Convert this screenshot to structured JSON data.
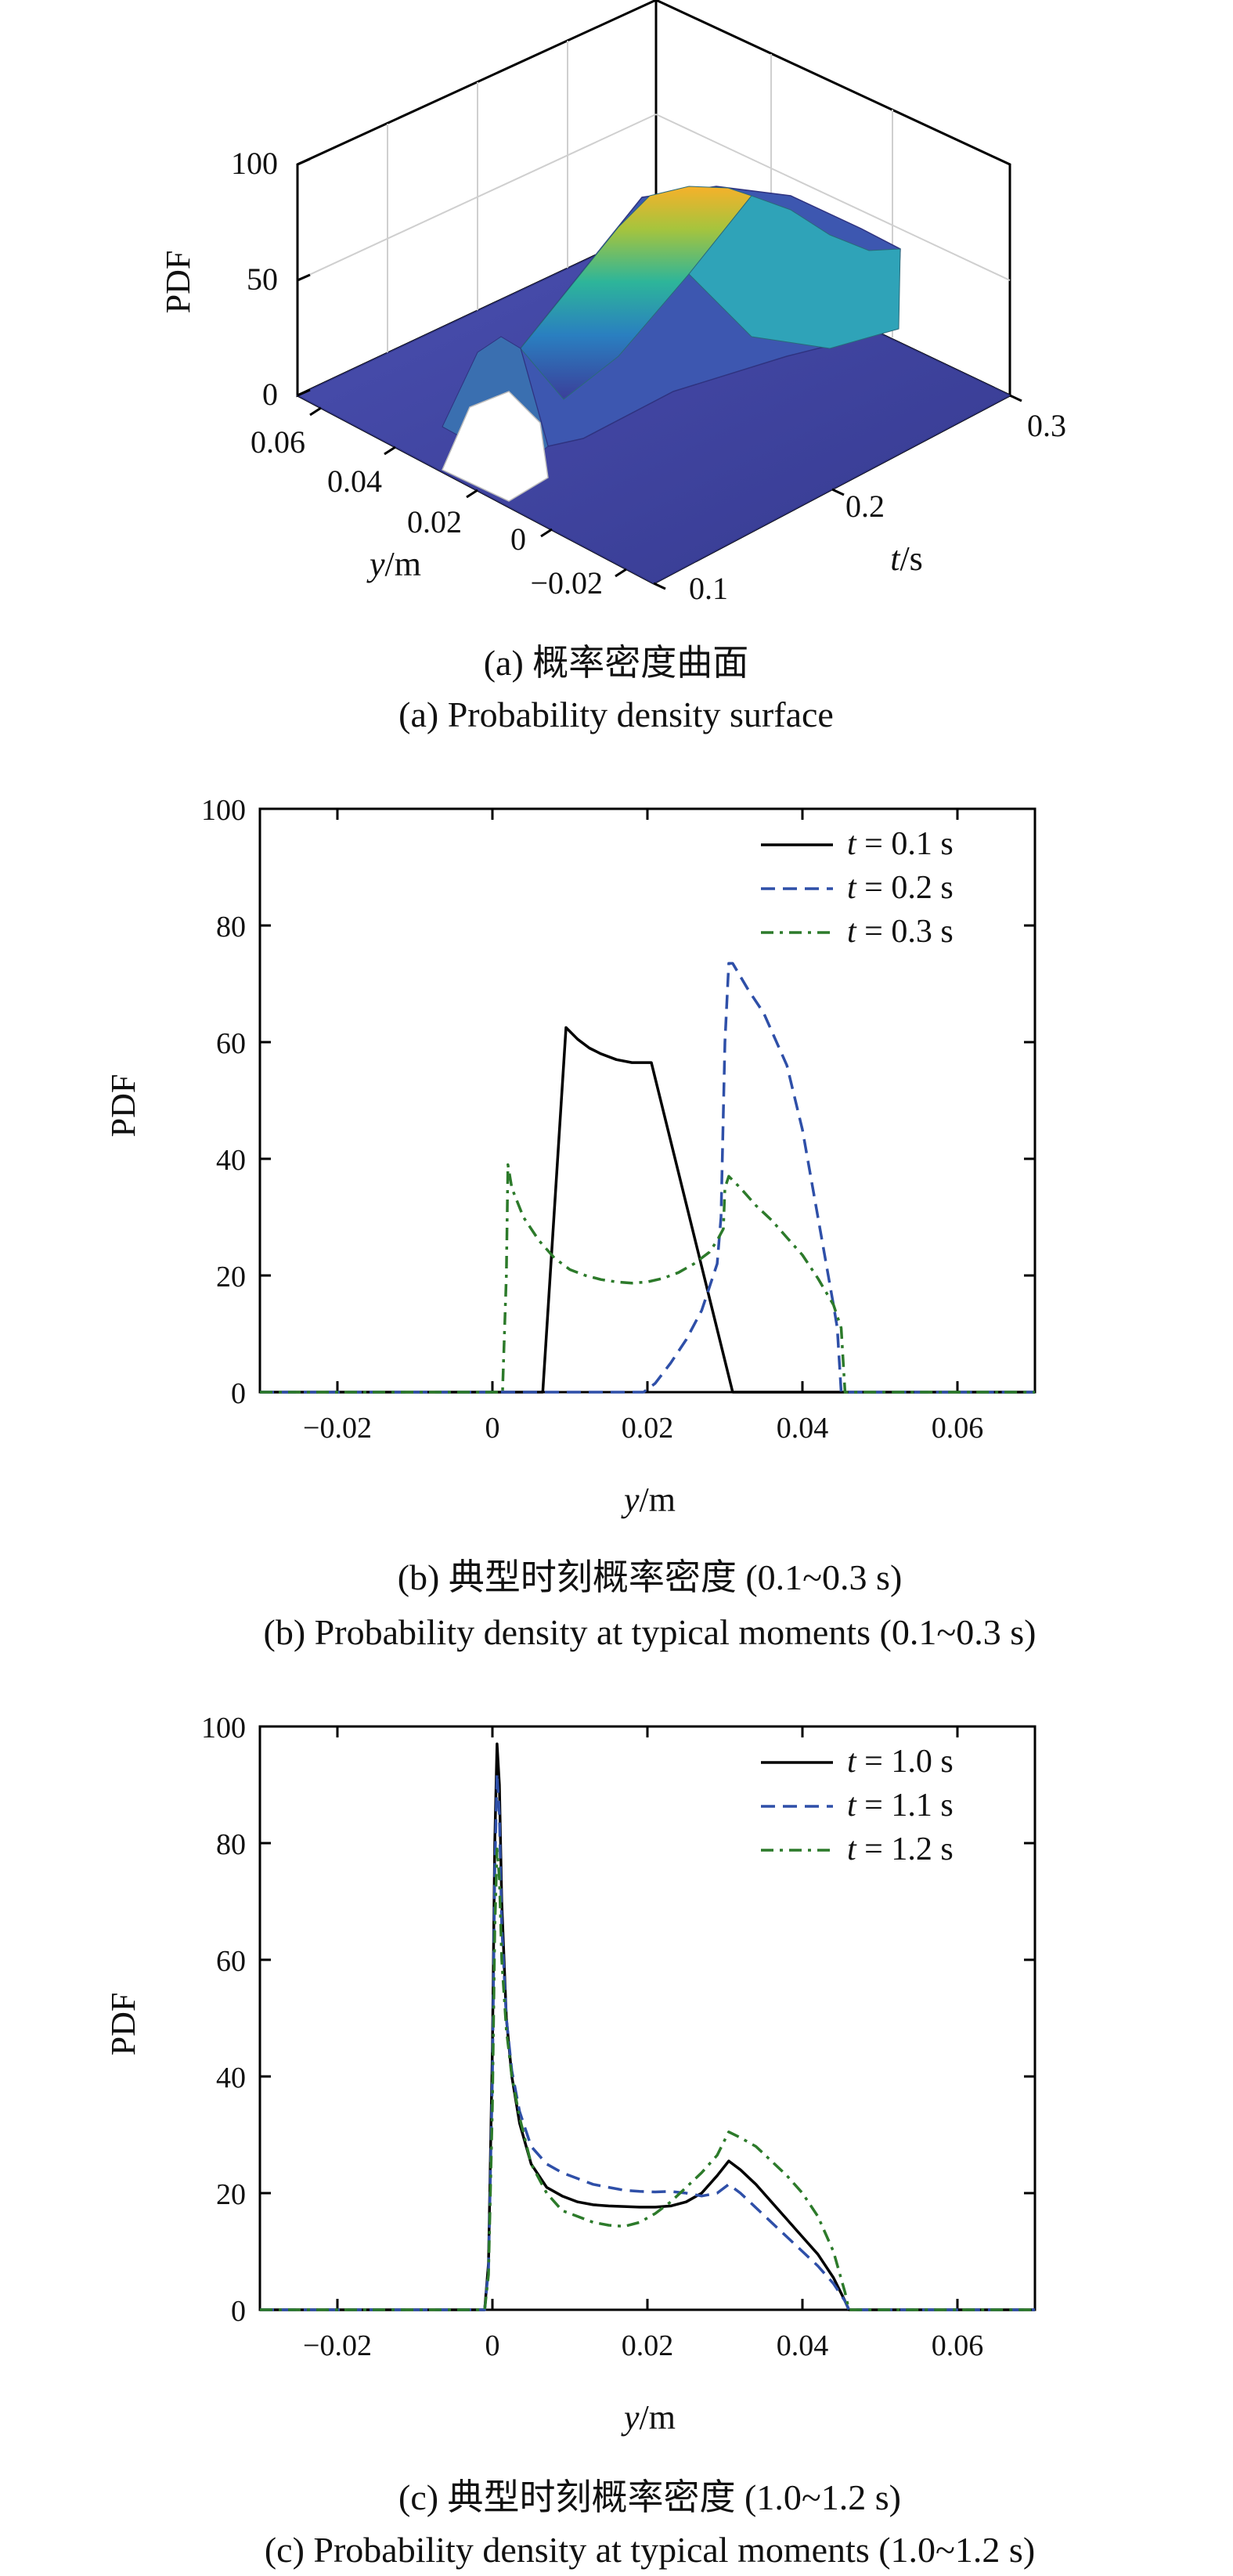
{
  "colors": {
    "series_1": "#000000",
    "series_2": "#2e4fa8",
    "series_3": "#2c7a2a",
    "surface_low": "#3b3f9a",
    "surface_high": "#f6b12a"
  },
  "panel_a": {
    "caption_cn": "(a) 概率密度曲面",
    "caption_en": "(a) Probability density surface",
    "z_label": "PDF",
    "y_label_var": "y",
    "y_label_unit": "/m",
    "t_label_var": "t",
    "t_label_unit": "/s",
    "z_ticks": [
      "100",
      "50",
      "0"
    ],
    "y_ticks": [
      "0.06",
      "0.04",
      "0.02",
      "0",
      "−0.02"
    ],
    "t_ticks": [
      "0.1",
      "0.2",
      "0.3"
    ]
  },
  "panel_b": {
    "caption_cn": "(b) 典型时刻概率密度 (0.1~0.3 s)",
    "caption_en": "(b) Probability density at typical moments (0.1~0.3 s)",
    "xlabel_var": "y",
    "xlabel_unit": "/m",
    "ylabel": "PDF"
  },
  "panel_c": {
    "caption_cn": "(c) 典型时刻概率密度 (1.0~1.2 s)",
    "caption_en": "(c) Probability density at typical moments (1.0~1.2 s)",
    "xlabel_var": "y",
    "xlabel_unit": "/m",
    "ylabel": "PDF"
  },
  "chart_data": [
    {
      "type": "surface",
      "zlim": [
        0,
        100
      ],
      "ylim": [
        -0.02,
        0.06
      ],
      "tlim": [
        0.1,
        0.3
      ],
      "colormap": "parula"
    },
    {
      "type": "line",
      "xlim": [
        -0.03,
        0.07
      ],
      "ylim": [
        0,
        100
      ],
      "xticks": [
        -0.02,
        0,
        0.02,
        0.04,
        0.06
      ],
      "xtick_labels": [
        "−0.02",
        "0",
        "0.02",
        "0.04",
        "0.06"
      ],
      "yticks": [
        0,
        20,
        40,
        60,
        80,
        100
      ],
      "ytick_labels": [
        "0",
        "20",
        "40",
        "60",
        "80",
        "100"
      ],
      "legend_position": "top-right",
      "series": [
        {
          "name_var": "t",
          "name_rest": " = 0.1 s",
          "style": "solid",
          "color": "#000000",
          "points": [
            [
              -0.03,
              0
            ],
            [
              0.0065,
              0
            ],
            [
              0.0095,
              62.5
            ],
            [
              0.011,
              60.5
            ],
            [
              0.0125,
              59
            ],
            [
              0.014,
              58
            ],
            [
              0.016,
              57
            ],
            [
              0.018,
              56.5
            ],
            [
              0.0195,
              56.5
            ],
            [
              0.0205,
              56.5
            ],
            [
              0.031,
              0
            ],
            [
              0.07,
              0
            ]
          ]
        },
        {
          "name_var": "t",
          "name_rest": " = 0.2 s",
          "style": "dashed",
          "color": "#2e4fa8",
          "points": [
            [
              -0.03,
              0
            ],
            [
              0.0195,
              0
            ],
            [
              0.021,
              1.5
            ],
            [
              0.023,
              5
            ],
            [
              0.025,
              9
            ],
            [
              0.027,
              14
            ],
            [
              0.029,
              22
            ],
            [
              0.0295,
              30
            ],
            [
              0.03,
              60
            ],
            [
              0.0305,
              73.5
            ],
            [
              0.031,
              73.5
            ],
            [
              0.033,
              69
            ],
            [
              0.035,
              65
            ],
            [
              0.038,
              56
            ],
            [
              0.04,
              45
            ],
            [
              0.042,
              30
            ],
            [
              0.044,
              15
            ],
            [
              0.0445,
              11
            ],
            [
              0.045,
              0
            ],
            [
              0.07,
              0
            ]
          ]
        },
        {
          "name_var": "t",
          "name_rest": " = 0.3 s",
          "style": "dashdot",
          "color": "#2c7a2a",
          "points": [
            [
              -0.03,
              0
            ],
            [
              0.0013,
              0
            ],
            [
              0.0018,
              20
            ],
            [
              0.002,
              39
            ],
            [
              0.0025,
              35
            ],
            [
              0.004,
              30
            ],
            [
              0.006,
              26
            ],
            [
              0.008,
              23
            ],
            [
              0.01,
              21
            ],
            [
              0.012,
              20
            ],
            [
              0.014,
              19.3
            ],
            [
              0.016,
              18.9
            ],
            [
              0.018,
              18.7
            ],
            [
              0.02,
              18.9
            ],
            [
              0.022,
              19.5
            ],
            [
              0.024,
              20.5
            ],
            [
              0.026,
              22
            ],
            [
              0.028,
              24
            ],
            [
              0.029,
              26
            ],
            [
              0.0298,
              28
            ],
            [
              0.03,
              35
            ],
            [
              0.0305,
              37
            ],
            [
              0.032,
              35
            ],
            [
              0.034,
              32
            ],
            [
              0.036,
              29.5
            ],
            [
              0.038,
              26.5
            ],
            [
              0.04,
              23.5
            ],
            [
              0.042,
              19.5
            ],
            [
              0.044,
              15
            ],
            [
              0.045,
              11
            ],
            [
              0.0455,
              0
            ],
            [
              0.07,
              0
            ]
          ]
        }
      ]
    },
    {
      "type": "line",
      "xlim": [
        -0.03,
        0.07
      ],
      "ylim": [
        0,
        100
      ],
      "xticks": [
        -0.02,
        0,
        0.02,
        0.04,
        0.06
      ],
      "xtick_labels": [
        "−0.02",
        "0",
        "0.02",
        "0.04",
        "0.06"
      ],
      "yticks": [
        0,
        20,
        40,
        60,
        80,
        100
      ],
      "ytick_labels": [
        "0",
        "20",
        "40",
        "60",
        "80",
        "100"
      ],
      "legend_position": "top-right",
      "series": [
        {
          "name_var": "t",
          "name_rest": " = 1.0 s",
          "style": "solid",
          "color": "#000000",
          "points": [
            [
              -0.03,
              0
            ],
            [
              -0.001,
              0
            ],
            [
              -0.0005,
              8
            ],
            [
              0,
              45
            ],
            [
              0.0003,
              80
            ],
            [
              0.0006,
              97
            ],
            [
              0.0009,
              90
            ],
            [
              0.0012,
              70
            ],
            [
              0.0018,
              50
            ],
            [
              0.0025,
              40
            ],
            [
              0.0035,
              32
            ],
            [
              0.005,
              25
            ],
            [
              0.007,
              21
            ],
            [
              0.009,
              19.5
            ],
            [
              0.011,
              18.5
            ],
            [
              0.013,
              18
            ],
            [
              0.015,
              17.8
            ],
            [
              0.017,
              17.7
            ],
            [
              0.019,
              17.6
            ],
            [
              0.021,
              17.6
            ],
            [
              0.023,
              17.8
            ],
            [
              0.025,
              18.5
            ],
            [
              0.027,
              20
            ],
            [
              0.029,
              23
            ],
            [
              0.0305,
              25.5
            ],
            [
              0.032,
              24
            ],
            [
              0.034,
              21.5
            ],
            [
              0.036,
              18.5
            ],
            [
              0.038,
              15.5
            ],
            [
              0.04,
              12.5
            ],
            [
              0.042,
              9.5
            ],
            [
              0.044,
              5.5
            ],
            [
              0.0455,
              1.5
            ],
            [
              0.046,
              0
            ],
            [
              0.07,
              0
            ]
          ]
        },
        {
          "name_var": "t",
          "name_rest": " = 1.1 s",
          "style": "dashed",
          "color": "#2e4fa8",
          "points": [
            [
              -0.03,
              0
            ],
            [
              -0.001,
              0
            ],
            [
              -0.0005,
              7
            ],
            [
              0,
              40
            ],
            [
              0.0003,
              75
            ],
            [
              0.0006,
              92
            ],
            [
              0.0009,
              85
            ],
            [
              0.0012,
              66
            ],
            [
              0.0018,
              50
            ],
            [
              0.0025,
              41
            ],
            [
              0.0035,
              34
            ],
            [
              0.005,
              28
            ],
            [
              0.007,
              25
            ],
            [
              0.009,
              23.5
            ],
            [
              0.011,
              22.5
            ],
            [
              0.013,
              21.5
            ],
            [
              0.015,
              21
            ],
            [
              0.017,
              20.5
            ],
            [
              0.019,
              20.3
            ],
            [
              0.021,
              20.2
            ],
            [
              0.023,
              20.3
            ],
            [
              0.025,
              20
            ],
            [
              0.027,
              19.5
            ],
            [
              0.029,
              20
            ],
            [
              0.0305,
              21.5
            ],
            [
              0.032,
              20
            ],
            [
              0.034,
              17.5
            ],
            [
              0.036,
              15
            ],
            [
              0.038,
              12.5
            ],
            [
              0.04,
              10
            ],
            [
              0.042,
              7.5
            ],
            [
              0.044,
              4.5
            ],
            [
              0.0455,
              1.5
            ],
            [
              0.046,
              0
            ],
            [
              0.07,
              0
            ]
          ]
        },
        {
          "name_var": "t",
          "name_rest": " = 1.2 s",
          "style": "dashdot",
          "color": "#2c7a2a",
          "points": [
            [
              -0.03,
              0
            ],
            [
              -0.001,
              0
            ],
            [
              -0.0005,
              6
            ],
            [
              0,
              35
            ],
            [
              0.0003,
              65
            ],
            [
              0.0006,
              79
            ],
            [
              0.0009,
              74
            ],
            [
              0.0012,
              60
            ],
            [
              0.0018,
              48
            ],
            [
              0.0025,
              40
            ],
            [
              0.0035,
              33
            ],
            [
              0.005,
              25
            ],
            [
              0.007,
              20
            ],
            [
              0.009,
              17
            ],
            [
              0.011,
              16
            ],
            [
              0.013,
              15
            ],
            [
              0.015,
              14.5
            ],
            [
              0.017,
              14.3
            ],
            [
              0.019,
              15
            ],
            [
              0.021,
              16.5
            ],
            [
              0.023,
              18.5
            ],
            [
              0.025,
              21
            ],
            [
              0.027,
              23.5
            ],
            [
              0.029,
              26.5
            ],
            [
              0.0305,
              30.5
            ],
            [
              0.032,
              29.5
            ],
            [
              0.034,
              28
            ],
            [
              0.036,
              25.5
            ],
            [
              0.038,
              23
            ],
            [
              0.04,
              20
            ],
            [
              0.042,
              16
            ],
            [
              0.044,
              10
            ],
            [
              0.0455,
              3
            ],
            [
              0.046,
              0
            ],
            [
              0.07,
              0
            ]
          ]
        }
      ]
    }
  ]
}
